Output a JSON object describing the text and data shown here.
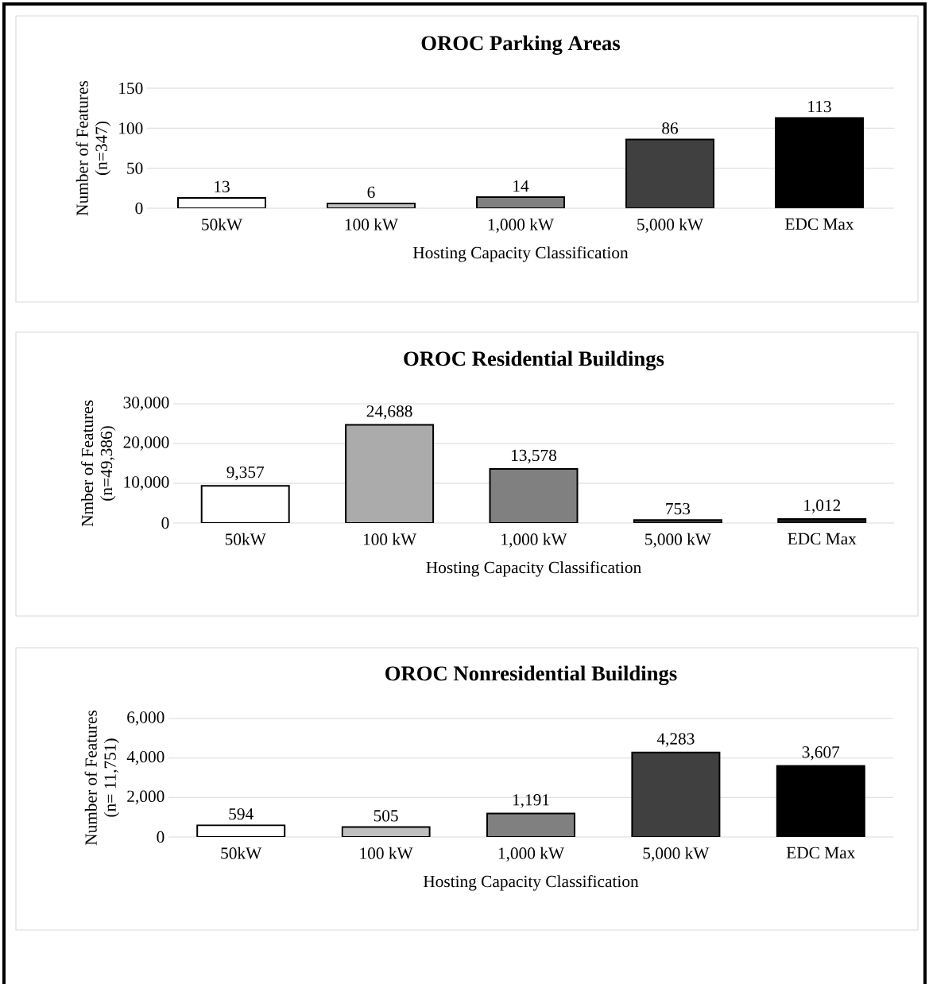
{
  "chart_data": [
    {
      "type": "bar",
      "title": "OROC Parking Areas",
      "xlabel": "Hosting Capacity Classification",
      "ylabel": "Number of Features (n=347)",
      "categories": [
        "50kW",
        "100 kW",
        "1,000 kW",
        "5,000 kW",
        "EDC Max"
      ],
      "values": [
        13,
        6,
        14,
        86,
        113
      ],
      "colors": [
        "#ffffff",
        "#bfbfbf",
        "#808080",
        "#404040",
        "#000000"
      ],
      "ylim": [
        0,
        150
      ],
      "yticks": [
        0,
        50,
        100,
        150
      ],
      "grid": "y",
      "value_labels": [
        "13",
        "6",
        "14",
        "86",
        "113"
      ]
    },
    {
      "type": "bar",
      "title": "OROC Residential Buildings",
      "xlabel": "Hosting Capacity Classification",
      "ylabel": "Nmber of Features (n=49,386)",
      "categories": [
        "50kW",
        "100 kW",
        "1,000 kW",
        "5,000 kW",
        "EDC Max"
      ],
      "values": [
        9357,
        24688,
        13578,
        753,
        1012
      ],
      "colors": [
        "#ffffff",
        "#ababab",
        "#808080",
        "#404040",
        "#1a1a1a"
      ],
      "ylim": [
        0,
        30000
      ],
      "yticks": [
        0,
        {
          "value": 10000,
          "label": "10,000"
        },
        {
          "value": 20000,
          "label": "20,000"
        },
        {
          "value": 30000,
          "label": "30,000"
        }
      ],
      "grid": "y",
      "value_labels": [
        "9,357",
        "24,688",
        "13,578",
        "753",
        "1,012"
      ]
    },
    {
      "type": "bar",
      "title": "OROC Nonresidential Buildings",
      "xlabel": "Hosting Capacity Classification",
      "ylabel": "Number of Features (n= 11,751)",
      "categories": [
        "50kW",
        "100 kW",
        "1,000 kW",
        "5,000 kW",
        "EDC Max"
      ],
      "values": [
        594,
        505,
        1191,
        4283,
        3607
      ],
      "colors": [
        "#ffffff",
        "#bfbfbf",
        "#808080",
        "#404040",
        "#000000"
      ],
      "ylim": [
        0,
        6000
      ],
      "yticks": [
        0,
        {
          "value": 2000,
          "label": "2,000"
        },
        {
          "value": 4000,
          "label": "4,000"
        },
        {
          "value": 6000,
          "label": "6,000"
        }
      ],
      "grid": "y",
      "value_labels": [
        "594",
        "505",
        "1,191",
        "4,283",
        "3,607"
      ]
    }
  ]
}
